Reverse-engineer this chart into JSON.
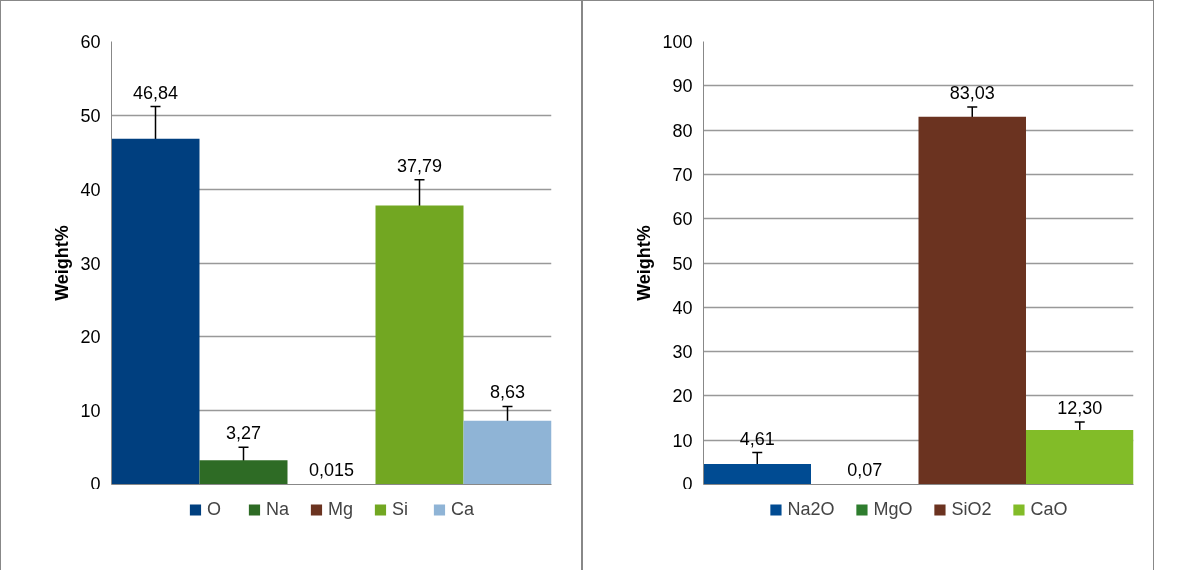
{
  "chart_data": [
    {
      "type": "bar",
      "ylabel": "Weight%",
      "categories": [
        null
      ],
      "ylim": [
        0,
        60
      ],
      "yticks": [
        0,
        10,
        20,
        30,
        40,
        50,
        60
      ],
      "grid": "y",
      "legend": "bottom",
      "tick_labels": "y",
      "series": [
        {
          "name": "O",
          "color": "#003f7f",
          "values": [
            46.84
          ],
          "errors": [
            4.35
          ],
          "value_labels": [
            "46,84"
          ]
        },
        {
          "name": "Na",
          "color": "#2e6b25",
          "values": [
            3.27
          ],
          "errors": [
            1.77
          ],
          "value_labels": [
            "3,27"
          ]
        },
        {
          "name": "Mg",
          "color": "#6b3320",
          "values": [
            0.015
          ],
          "errors": [
            null
          ],
          "value_labels": [
            "0,015"
          ]
        },
        {
          "name": "Si",
          "color": "#72a722",
          "values": [
            37.79
          ],
          "errors": [
            3.5
          ],
          "value_labels": [
            "37,79"
          ]
        },
        {
          "name": "Ca",
          "color": "#8fb4d6",
          "values": [
            8.63
          ],
          "errors": [
            1.95
          ],
          "value_labels": [
            "8,63"
          ]
        }
      ]
    },
    {
      "type": "bar",
      "ylabel": "Weight%",
      "categories": [
        null
      ],
      "ylim": [
        0,
        100
      ],
      "yticks": [
        0,
        10,
        20,
        30,
        40,
        50,
        60,
        70,
        80,
        90,
        100
      ],
      "grid": "y",
      "legend": "bottom",
      "tick_labels": "y",
      "series": [
        {
          "name": "Na2O",
          "color": "#004b92",
          "values": [
            4.61
          ],
          "errors": [
            2.6
          ],
          "value_labels": [
            "4,61"
          ]
        },
        {
          "name": "MgO",
          "color": "#2e7d2e",
          "values": [
            0.07
          ],
          "errors": [
            null
          ],
          "value_labels": [
            "0,07"
          ]
        },
        {
          "name": "SiO2",
          "color": "#6b3320",
          "values": [
            83.03
          ],
          "errors": [
            2.2
          ],
          "value_labels": [
            "83,03"
          ]
        },
        {
          "name": "CaO",
          "color": "#82bc28",
          "values": [
            12.3
          ],
          "errors": [
            1.8
          ],
          "value_labels": [
            "12,30"
          ]
        }
      ]
    }
  ]
}
